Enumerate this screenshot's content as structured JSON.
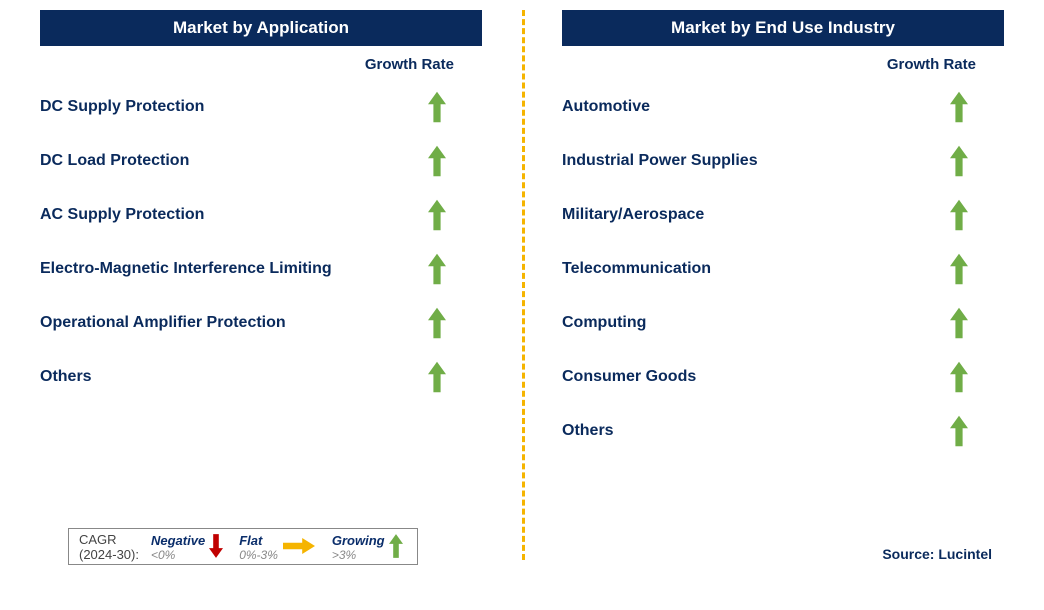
{
  "colors": {
    "header_bg": "#0a2a5c",
    "header_text": "#ffffff",
    "label_text": "#0a2a5c",
    "arrow_up": "#70ad47",
    "arrow_down": "#c00000",
    "arrow_flat": "#f5b400",
    "divider": "#f5b400",
    "legend_border": "#888888"
  },
  "left": {
    "header": "Market by Application",
    "growth_label": "Growth Rate",
    "rows": [
      {
        "label": "DC Supply Protection",
        "trend": "up"
      },
      {
        "label": "DC Load Protection",
        "trend": "up"
      },
      {
        "label": "AC Supply Protection",
        "trend": "up"
      },
      {
        "label": "Electro-Magnetic Interference Limiting",
        "trend": "up"
      },
      {
        "label": "Operational Amplifier Protection",
        "trend": "up"
      },
      {
        "label": "Others",
        "trend": "up"
      }
    ]
  },
  "right": {
    "header": "Market by End Use Industry",
    "growth_label": "Growth Rate",
    "rows": [
      {
        "label": "Automotive",
        "trend": "up"
      },
      {
        "label": "Industrial Power Supplies",
        "trend": "up"
      },
      {
        "label": "Military/Aerospace",
        "trend": "up"
      },
      {
        "label": "Telecommunication",
        "trend": "up"
      },
      {
        "label": "Computing",
        "trend": "up"
      },
      {
        "label": "Consumer Goods",
        "trend": "up"
      },
      {
        "label": "Others",
        "trend": "up"
      }
    ]
  },
  "legend": {
    "left_line1": "CAGR",
    "left_line2": "(2024-30):",
    "items": [
      {
        "title": "Negative",
        "sub": "<0%",
        "arrow": "down"
      },
      {
        "title": "Flat",
        "sub": "0%-3%",
        "arrow": "flat"
      },
      {
        "title": "Growing",
        "sub": ">3%",
        "arrow": "up"
      }
    ]
  },
  "source": "Source: Lucintel"
}
